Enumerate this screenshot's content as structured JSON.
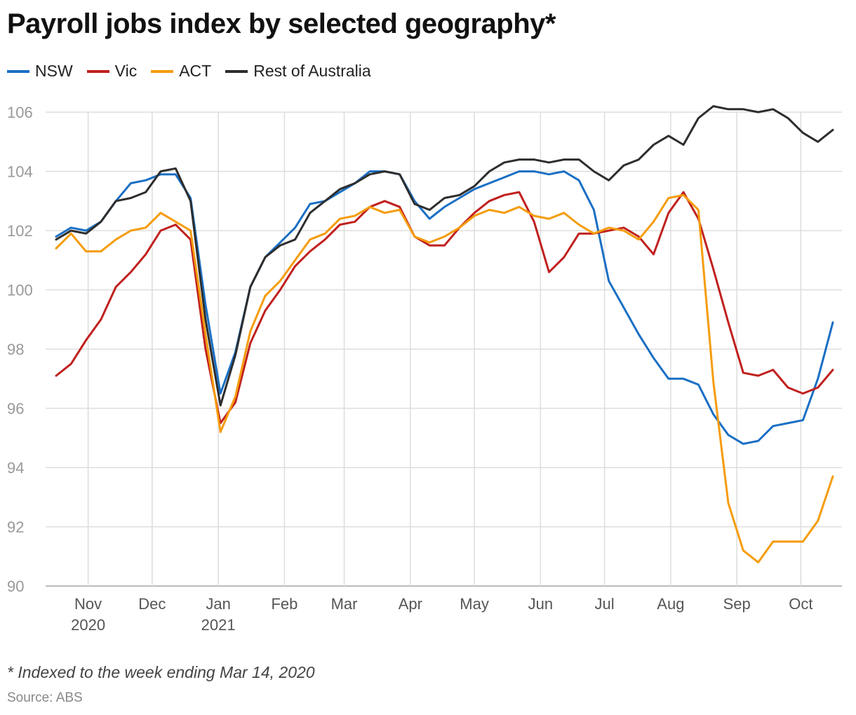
{
  "title": "Payroll jobs index by selected geography*",
  "footnote": "* Indexed to the week ending Mar 14, 2020",
  "source": "Source: ABS",
  "chart_data": {
    "type": "line",
    "title": "Payroll jobs index by selected geography*",
    "xlabel": "",
    "ylabel": "",
    "ylim": [
      90,
      106
    ],
    "y_ticks": [
      90,
      92,
      94,
      96,
      98,
      100,
      102,
      104,
      106
    ],
    "grid": true,
    "legend_position": "top-left",
    "x_start": "2020-10-17",
    "x_end": "2021-10-16",
    "x_ticks": [
      {
        "date": "2020-11-01",
        "label": "Nov",
        "sublabel": "2020"
      },
      {
        "date": "2020-12-01",
        "label": "Dec",
        "sublabel": ""
      },
      {
        "date": "2021-01-01",
        "label": "Jan",
        "sublabel": "2021"
      },
      {
        "date": "2021-02-01",
        "label": "Feb",
        "sublabel": ""
      },
      {
        "date": "2021-03-01",
        "label": "Mar",
        "sublabel": ""
      },
      {
        "date": "2021-04-01",
        "label": "Apr",
        "sublabel": ""
      },
      {
        "date": "2021-05-01",
        "label": "May",
        "sublabel": ""
      },
      {
        "date": "2021-06-01",
        "label": "Jun",
        "sublabel": ""
      },
      {
        "date": "2021-07-01",
        "label": "Jul",
        "sublabel": ""
      },
      {
        "date": "2021-08-01",
        "label": "Aug",
        "sublabel": ""
      },
      {
        "date": "2021-09-01",
        "label": "Sep",
        "sublabel": ""
      },
      {
        "date": "2021-10-01",
        "label": "Oct",
        "sublabel": ""
      }
    ],
    "x": [
      "2020-10-17",
      "2020-10-24",
      "2020-10-31",
      "2020-11-07",
      "2020-11-14",
      "2020-11-21",
      "2020-11-28",
      "2020-12-05",
      "2020-12-12",
      "2020-12-19",
      "2020-12-26",
      "2021-01-02",
      "2021-01-09",
      "2021-01-16",
      "2021-01-23",
      "2021-01-30",
      "2021-02-06",
      "2021-02-13",
      "2021-02-20",
      "2021-02-27",
      "2021-03-06",
      "2021-03-13",
      "2021-03-20",
      "2021-03-27",
      "2021-04-03",
      "2021-04-10",
      "2021-04-17",
      "2021-04-24",
      "2021-05-01",
      "2021-05-08",
      "2021-05-15",
      "2021-05-22",
      "2021-05-29",
      "2021-06-05",
      "2021-06-12",
      "2021-06-19",
      "2021-06-26",
      "2021-07-03",
      "2021-07-10",
      "2021-07-17",
      "2021-07-24",
      "2021-07-31",
      "2021-08-07",
      "2021-08-14",
      "2021-08-21",
      "2021-08-28",
      "2021-09-04",
      "2021-09-11",
      "2021-09-18",
      "2021-09-25",
      "2021-10-02",
      "2021-10-09",
      "2021-10-16"
    ],
    "series": [
      {
        "name": "NSW",
        "color": "#1a6fc4",
        "values": [
          101.8,
          102.1,
          102.0,
          102.3,
          103.0,
          103.6,
          103.7,
          103.9,
          103.9,
          103.1,
          99.5,
          96.5,
          97.9,
          100.1,
          101.1,
          101.6,
          102.1,
          102.9,
          103.0,
          103.3,
          103.6,
          104.0,
          104.0,
          103.9,
          103.0,
          102.4,
          102.8,
          103.1,
          103.4,
          103.6,
          103.8,
          104.0,
          104.0,
          103.9,
          104.0,
          103.7,
          102.7,
          100.3,
          99.4,
          98.5,
          97.7,
          97.0,
          97.0,
          96.8,
          95.8,
          95.1,
          94.8,
          94.9,
          95.4,
          95.5,
          95.6,
          97.0,
          98.9
        ]
      },
      {
        "name": "Vic",
        "color": "#c0201e",
        "values": [
          97.1,
          97.5,
          98.3,
          99.0,
          100.1,
          100.6,
          101.2,
          102.0,
          102.2,
          101.7,
          98.0,
          95.5,
          96.2,
          98.2,
          99.3,
          100.0,
          100.8,
          101.3,
          101.7,
          102.2,
          102.3,
          102.8,
          103.0,
          102.8,
          101.8,
          101.5,
          101.5,
          102.1,
          102.6,
          103.0,
          103.2,
          103.3,
          102.3,
          100.6,
          101.1,
          101.9,
          101.9,
          102.0,
          102.1,
          101.8,
          101.2,
          102.6,
          103.3,
          102.4,
          100.7,
          98.9,
          97.2,
          97.1,
          97.3,
          96.7,
          96.5,
          96.7,
          97.3
        ]
      },
      {
        "name": "ACT",
        "color": "#f59c0b",
        "values": [
          101.4,
          101.9,
          101.3,
          101.3,
          101.7,
          102.0,
          102.1,
          102.6,
          102.3,
          102.0,
          98.5,
          95.2,
          96.4,
          98.6,
          99.8,
          100.3,
          101.0,
          101.7,
          101.9,
          102.4,
          102.5,
          102.8,
          102.6,
          102.7,
          101.8,
          101.6,
          101.8,
          102.1,
          102.5,
          102.7,
          102.6,
          102.8,
          102.5,
          102.4,
          102.6,
          102.2,
          101.9,
          102.1,
          102.0,
          101.7,
          102.3,
          103.1,
          103.2,
          102.7,
          96.9,
          92.8,
          91.2,
          90.8,
          91.5,
          91.5,
          91.5,
          92.2,
          93.7
        ]
      },
      {
        "name": "Rest of Australia",
        "color": "#2d2d2d",
        "values": [
          101.7,
          102.0,
          101.9,
          102.3,
          103.0,
          103.1,
          103.3,
          104.0,
          104.1,
          103.0,
          99.0,
          96.1,
          97.8,
          100.1,
          101.1,
          101.5,
          101.7,
          102.6,
          103.0,
          103.4,
          103.6,
          103.9,
          104.0,
          103.9,
          102.9,
          102.7,
          103.1,
          103.2,
          103.5,
          104.0,
          104.3,
          104.4,
          104.4,
          104.3,
          104.4,
          104.4,
          104.0,
          103.7,
          104.2,
          104.4,
          104.9,
          105.2,
          104.9,
          105.8,
          106.2,
          106.1,
          106.1,
          106.0,
          106.1,
          105.8,
          105.3,
          105.0,
          105.4
        ]
      }
    ]
  }
}
